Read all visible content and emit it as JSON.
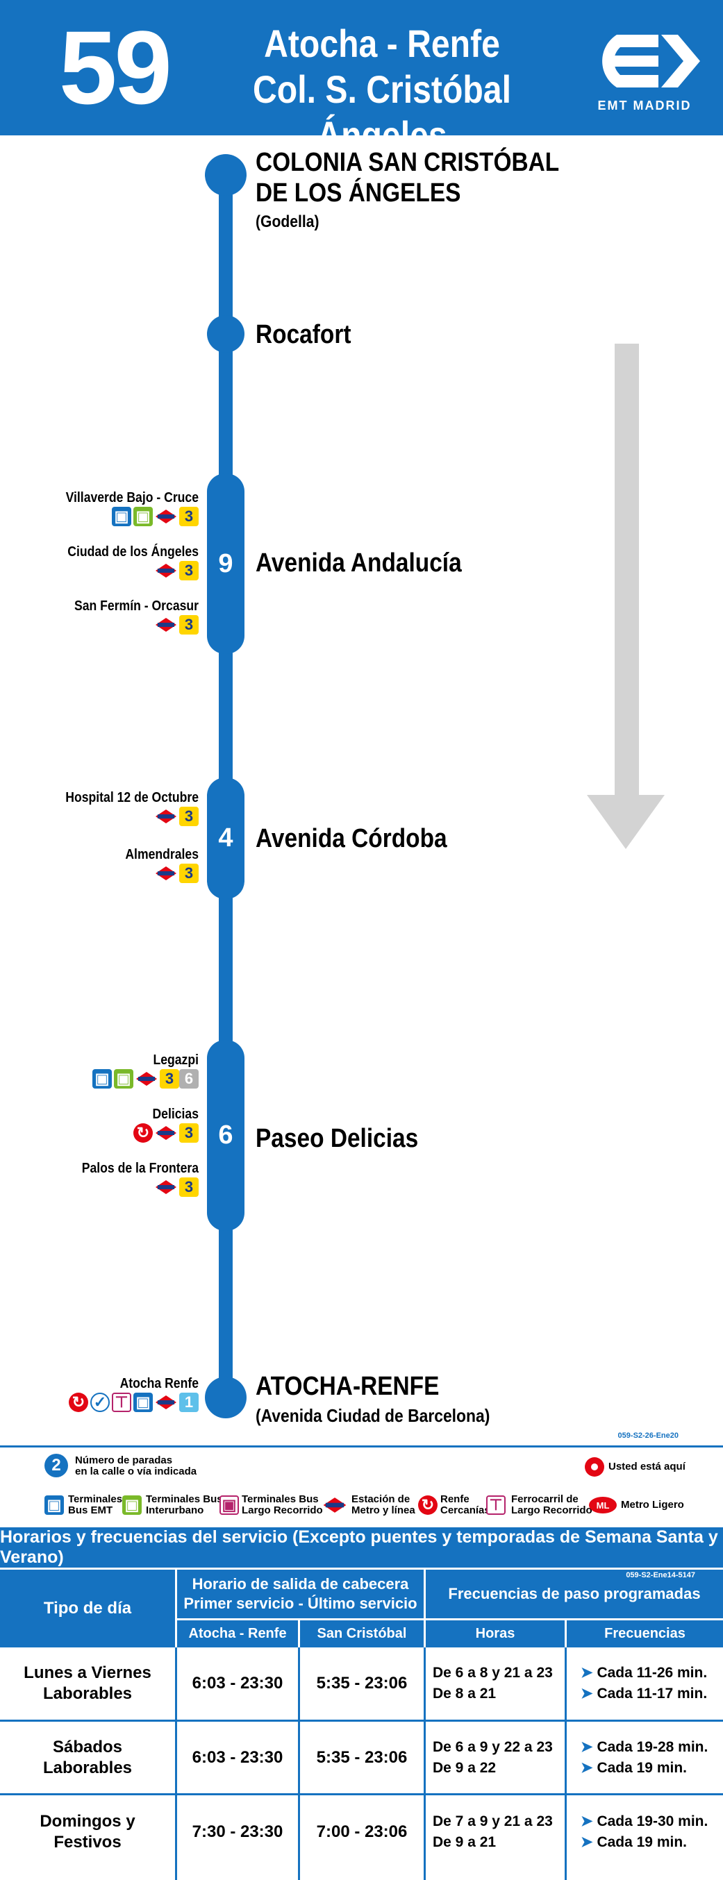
{
  "header": {
    "route_number": "59",
    "origin": "Atocha - Renfe",
    "destination": "Col. S. Cristóbal Ángeles",
    "logo_text": "EMT MADRID"
  },
  "stops": {
    "first": {
      "name_line1": "COLONIA SAN CRISTÓBAL",
      "name_line2": "DE LOS ÁNGELES",
      "sub": "(Godella)"
    },
    "rocafort": {
      "name": "Rocafort"
    },
    "andalucia": {
      "count": "9",
      "name": "Avenida Andalucía"
    },
    "cordoba": {
      "count": "4",
      "name": "Avenida Córdoba"
    },
    "delicias": {
      "count": "6",
      "name": "Paseo Delicias"
    },
    "last": {
      "name": "ATOCHA-RENFE",
      "sub": "(Avenida Ciudad de Barcelona)"
    }
  },
  "transfers": {
    "villaverde": {
      "label": "Villaverde Bajo - Cruce",
      "line": "3"
    },
    "ciudad_angeles": {
      "label": "Ciudad de los Ángeles",
      "line": "3"
    },
    "san_fermin": {
      "label": "San Fermín - Orcasur",
      "line": "3"
    },
    "hospital": {
      "label": "Hospital 12 de Octubre",
      "line": "3"
    },
    "almendrales": {
      "label": "Almendrales",
      "line": "3"
    },
    "legazpi": {
      "label": "Legazpi",
      "line_a": "3",
      "line_b": "6"
    },
    "delicias": {
      "label": "Delicias",
      "line": "3"
    },
    "palos": {
      "label": "Palos de la Frontera",
      "line": "3"
    },
    "atocha": {
      "label": "Atocha Renfe",
      "line": "1"
    }
  },
  "codes": {
    "map_code": "059-S2-26-Ene20",
    "table_code": "059-S2-Ene14-5147"
  },
  "legend": {
    "stops_count_number": "2",
    "stops_count_text_1": "Número de paradas",
    "stops_count_text_2": "en la calle o vía indicada",
    "you_are_here": "Usted está aquí",
    "items": [
      {
        "l1": "Terminales",
        "l2": "Bus EMT"
      },
      {
        "l1": "Terminales Bus",
        "l2": "Interurbano"
      },
      {
        "l1": "Terminales Bus",
        "l2": "Largo Recorrido"
      },
      {
        "l1": "Estación de",
        "l2": "Metro y línea"
      },
      {
        "l1": "Renfe",
        "l2": "Cercanías"
      },
      {
        "l1": "Ferrocarril de",
        "l2": "Largo Recorrido"
      },
      {
        "l1": "Metro Ligero",
        "l2": ""
      }
    ],
    "ml_badge": "ML"
  },
  "schedule": {
    "title": "Horarios y frecuencias del servicio (Excepto puentes y temporadas de Semana Santa y Verano)",
    "col_day": "Tipo de día",
    "col_hours_1": "Horario de salida de cabecera",
    "col_hours_2": "Primer servicio - Último servicio",
    "col_freq": "Frecuencias de paso programadas",
    "sub_atocha": "Atocha - Renfe",
    "sub_cristobal": "San Cristóbal",
    "sub_hours": "Horas",
    "sub_freq": "Frecuencias",
    "rows": [
      {
        "day_1": "Lunes a Viernes",
        "day_2": "Laborables",
        "atocha": "6:03 - 23:30",
        "cristobal": "5:35 - 23:06",
        "hours_1": "De 6 a 8 y 21 a 23",
        "hours_2": "De 8 a 21",
        "freq_1": "Cada 11-26 min.",
        "freq_2": "Cada 11-17 min."
      },
      {
        "day_1": "Sábados",
        "day_2": "Laborables",
        "atocha": "6:03 - 23:30",
        "cristobal": "5:35 - 23:06",
        "hours_1": "De 6 a 9 y 22 a 23",
        "hours_2": "De 9 a 22",
        "freq_1": "Cada 19-28 min.",
        "freq_2": "Cada 19 min."
      },
      {
        "day_1": "Domingos y",
        "day_2": "Festivos",
        "atocha": "7:30 - 23:30",
        "cristobal": "7:00 - 23:06",
        "hours_1": "De 7 a 9 y 21 a 23",
        "hours_2": "De 9 a 21",
        "freq_1": "Cada 19-30 min.",
        "freq_2": "Cada 19 min."
      }
    ]
  }
}
